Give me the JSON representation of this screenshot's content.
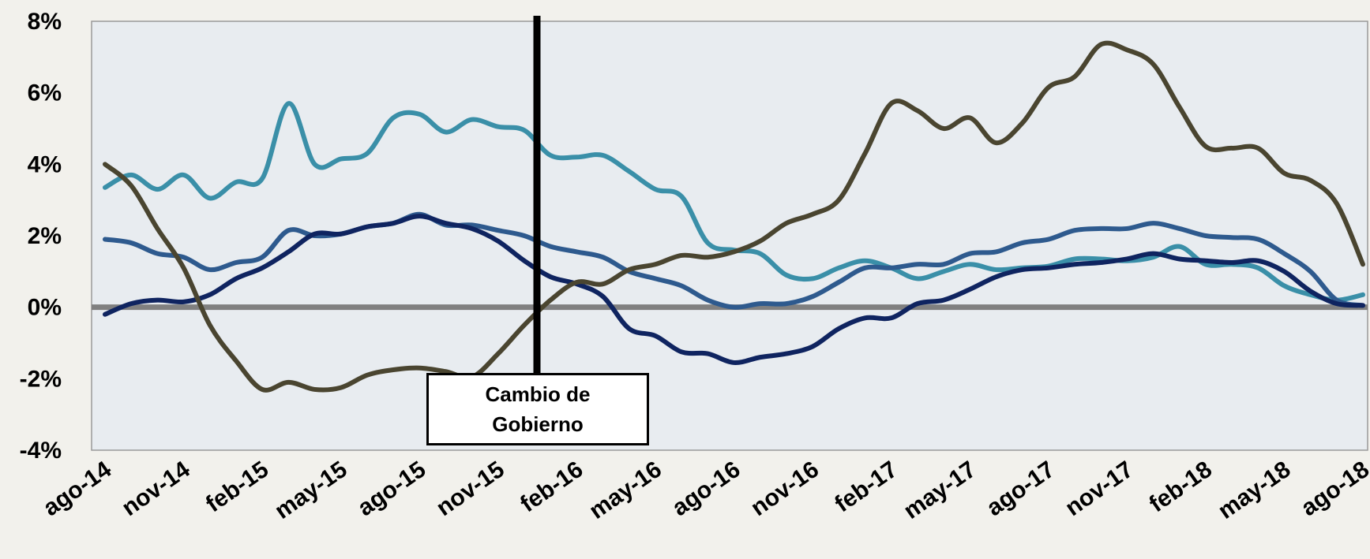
{
  "chart_data": {
    "type": "line",
    "categories": [
      "ago-14",
      null,
      null,
      "nov-14",
      null,
      null,
      "feb-15",
      null,
      null,
      "may-15",
      null,
      null,
      "ago-15",
      null,
      null,
      "nov-15",
      null,
      null,
      "feb-16",
      null,
      null,
      "may-16",
      null,
      null,
      "ago-16",
      null,
      null,
      "nov-16",
      null,
      null,
      "feb-17",
      null,
      null,
      "may-17",
      null,
      null,
      "ago-17",
      null,
      null,
      "nov-17",
      null,
      null,
      "feb-18",
      null,
      null,
      "may-18",
      null,
      null,
      "ago-18"
    ],
    "series": [
      {
        "color": "#3a8fa8",
        "values": [
          3.35,
          3.7,
          3.3,
          3.7,
          3.05,
          3.5,
          3.6,
          5.7,
          4.0,
          4.15,
          4.3,
          5.3,
          5.4,
          4.9,
          5.25,
          5.05,
          4.95,
          4.25,
          4.2,
          4.25,
          3.8,
          3.3,
          3.1,
          1.8,
          1.6,
          1.5,
          0.9,
          0.8,
          1.1,
          1.3,
          1.1,
          0.8,
          1.0,
          1.2,
          1.05,
          1.1,
          1.15,
          1.35,
          1.35,
          1.3,
          1.4,
          1.7,
          1.2,
          1.2,
          1.1,
          0.6,
          0.35,
          0.2,
          0.35
        ]
      },
      {
        "color": "#2e5a8e",
        "values": [
          1.9,
          1.8,
          1.5,
          1.4,
          1.05,
          1.25,
          1.4,
          2.15,
          2.0,
          2.05,
          2.25,
          2.35,
          2.6,
          2.3,
          2.3,
          2.15,
          2.0,
          1.7,
          1.55,
          1.4,
          1.0,
          0.8,
          0.6,
          0.2,
          0.0,
          0.1,
          0.1,
          0.3,
          0.7,
          1.1,
          1.1,
          1.2,
          1.2,
          1.5,
          1.55,
          1.8,
          1.9,
          2.15,
          2.2,
          2.2,
          2.35,
          2.2,
          2.0,
          1.95,
          1.9,
          1.5,
          1.0,
          0.2,
          0.05
        ]
      },
      {
        "color": "#0f2460",
        "values": [
          -0.2,
          0.1,
          0.2,
          0.15,
          0.35,
          0.8,
          1.1,
          1.55,
          2.05,
          2.05,
          2.25,
          2.35,
          2.55,
          2.35,
          2.2,
          1.85,
          1.3,
          0.85,
          0.65,
          0.3,
          -0.6,
          -0.8,
          -1.25,
          -1.3,
          -1.55,
          -1.4,
          -1.3,
          -1.1,
          -0.6,
          -0.3,
          -0.3,
          0.1,
          0.2,
          0.5,
          0.85,
          1.05,
          1.1,
          1.2,
          1.25,
          1.35,
          1.5,
          1.35,
          1.3,
          1.25,
          1.3,
          1.0,
          0.45,
          0.1,
          0.05
        ]
      },
      {
        "color": "#4a4530",
        "values": [
          4.0,
          3.4,
          2.2,
          1.1,
          -0.5,
          -1.5,
          -2.3,
          -2.1,
          -2.3,
          -2.25,
          -1.9,
          -1.75,
          -1.7,
          -1.8,
          -1.95,
          -1.3,
          -0.5,
          0.2,
          0.7,
          0.65,
          1.05,
          1.2,
          1.45,
          1.4,
          1.55,
          1.85,
          2.35,
          2.6,
          3.0,
          4.3,
          5.7,
          5.5,
          5.0,
          5.3,
          4.6,
          5.15,
          6.15,
          6.45,
          7.35,
          7.2,
          6.8,
          5.6,
          4.5,
          4.45,
          4.45,
          3.75,
          3.55,
          2.9,
          1.2
        ]
      }
    ],
    "ylim": [
      -4,
      8
    ],
    "yticks": [
      {
        "value": -4,
        "label": "-4%"
      },
      {
        "value": -2,
        "label": "-2%"
      },
      {
        "value": 0,
        "label": "0%"
      },
      {
        "value": 2,
        "label": "2%"
      },
      {
        "value": 4,
        "label": "4%"
      },
      {
        "value": 6,
        "label": "6%"
      },
      {
        "value": 8,
        "label": "8%"
      }
    ],
    "annotation": "Cambio de Gobierno"
  }
}
